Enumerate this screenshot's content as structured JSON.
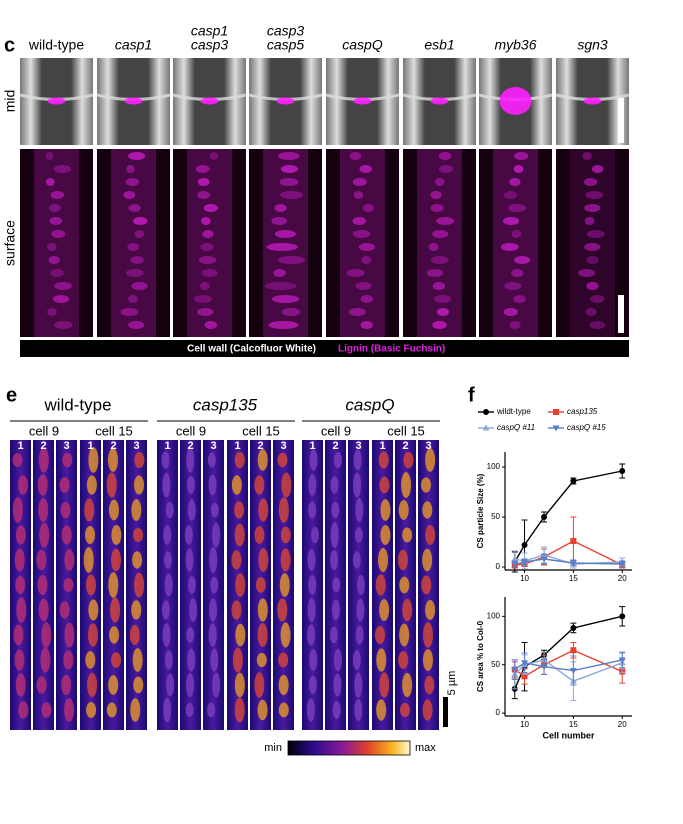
{
  "figure": {
    "panel_c": {
      "letter": "c",
      "genotypes": [
        [
          "wild-type"
        ],
        [
          "casp1"
        ],
        [
          "casp1",
          "casp3"
        ],
        [
          "casp3",
          "casp5"
        ],
        [
          "caspQ"
        ],
        [
          "esb1"
        ],
        [
          "myb36"
        ],
        [
          "sgn3"
        ]
      ],
      "rows": [
        "mid",
        "surface"
      ],
      "stain_cell_wall": "Cell wall (Calcofluor White)",
      "stain_lignin": "Lignin (Basic Fuchsin)"
    },
    "panel_e": {
      "letter": "e",
      "groups": [
        "wild-type",
        "casp135",
        "caspQ"
      ],
      "cells": [
        "cell 9",
        "cell 15"
      ],
      "lanes": [
        "1",
        "2",
        "3"
      ],
      "scale": "5 µm",
      "cmap_min": "min",
      "cmap_max": "max"
    },
    "panel_f_letter": "f"
  },
  "chart_data": [
    {
      "type": "line",
      "ylabel": "CS particle Size (%)",
      "x": [
        9,
        10,
        12,
        15,
        20
      ],
      "xlim": [
        8,
        21
      ],
      "xticks": [
        10,
        15,
        20
      ],
      "ylim": [
        -3,
        115
      ],
      "yticks": [
        0,
        50,
        100
      ],
      "series": [
        {
          "name": "wildt-type",
          "color": "#000000",
          "marker": "circle",
          "values": [
            5,
            22,
            50,
            86,
            96
          ],
          "errors": [
            10,
            25,
            5,
            3,
            7
          ]
        },
        {
          "name": "casp135",
          "color": "#e8402a",
          "marker": "square",
          "values": [
            2,
            3,
            10,
            26,
            2
          ],
          "errors": [
            3,
            5,
            8,
            24,
            3
          ]
        },
        {
          "name": "caspQ #11",
          "color": "#8ea9d8",
          "marker": "triangle-up",
          "values": [
            8,
            6,
            12,
            3,
            5
          ],
          "errors": [
            8,
            8,
            8,
            4,
            4
          ]
        },
        {
          "name": "caspQ #15",
          "color": "#5b7fc7",
          "marker": "triangle-down",
          "values": [
            3,
            5,
            8,
            4,
            3
          ],
          "errors": [
            3,
            3,
            5,
            3,
            3
          ]
        }
      ]
    },
    {
      "type": "line",
      "ylabel": "CS area % to Col-0",
      "xlabel": "Cell number",
      "x": [
        9,
        10,
        12,
        15,
        20
      ],
      "xlim": [
        8,
        21
      ],
      "xticks": [
        10,
        15,
        20
      ],
      "ylim": [
        -3,
        120
      ],
      "yticks": [
        0,
        50,
        100
      ],
      "series": [
        {
          "color": "#000000",
          "marker": "circle",
          "values": [
            25,
            48,
            60,
            88,
            100
          ],
          "errors": [
            10,
            25,
            5,
            5,
            10
          ]
        },
        {
          "color": "#e8402a",
          "marker": "square",
          "values": [
            45,
            38,
            50,
            65,
            43
          ],
          "errors": [
            8,
            8,
            10,
            8,
            12
          ]
        },
        {
          "color": "#8ea9d8",
          "marker": "triangle-up",
          "values": [
            40,
            50,
            55,
            33,
            52
          ],
          "errors": [
            15,
            10,
            8,
            20,
            10
          ]
        },
        {
          "color": "#5b7fc7",
          "marker": "triangle-down",
          "values": [
            45,
            52,
            48,
            44,
            55
          ],
          "errors": [
            10,
            10,
            8,
            15,
            8
          ]
        }
      ]
    }
  ]
}
